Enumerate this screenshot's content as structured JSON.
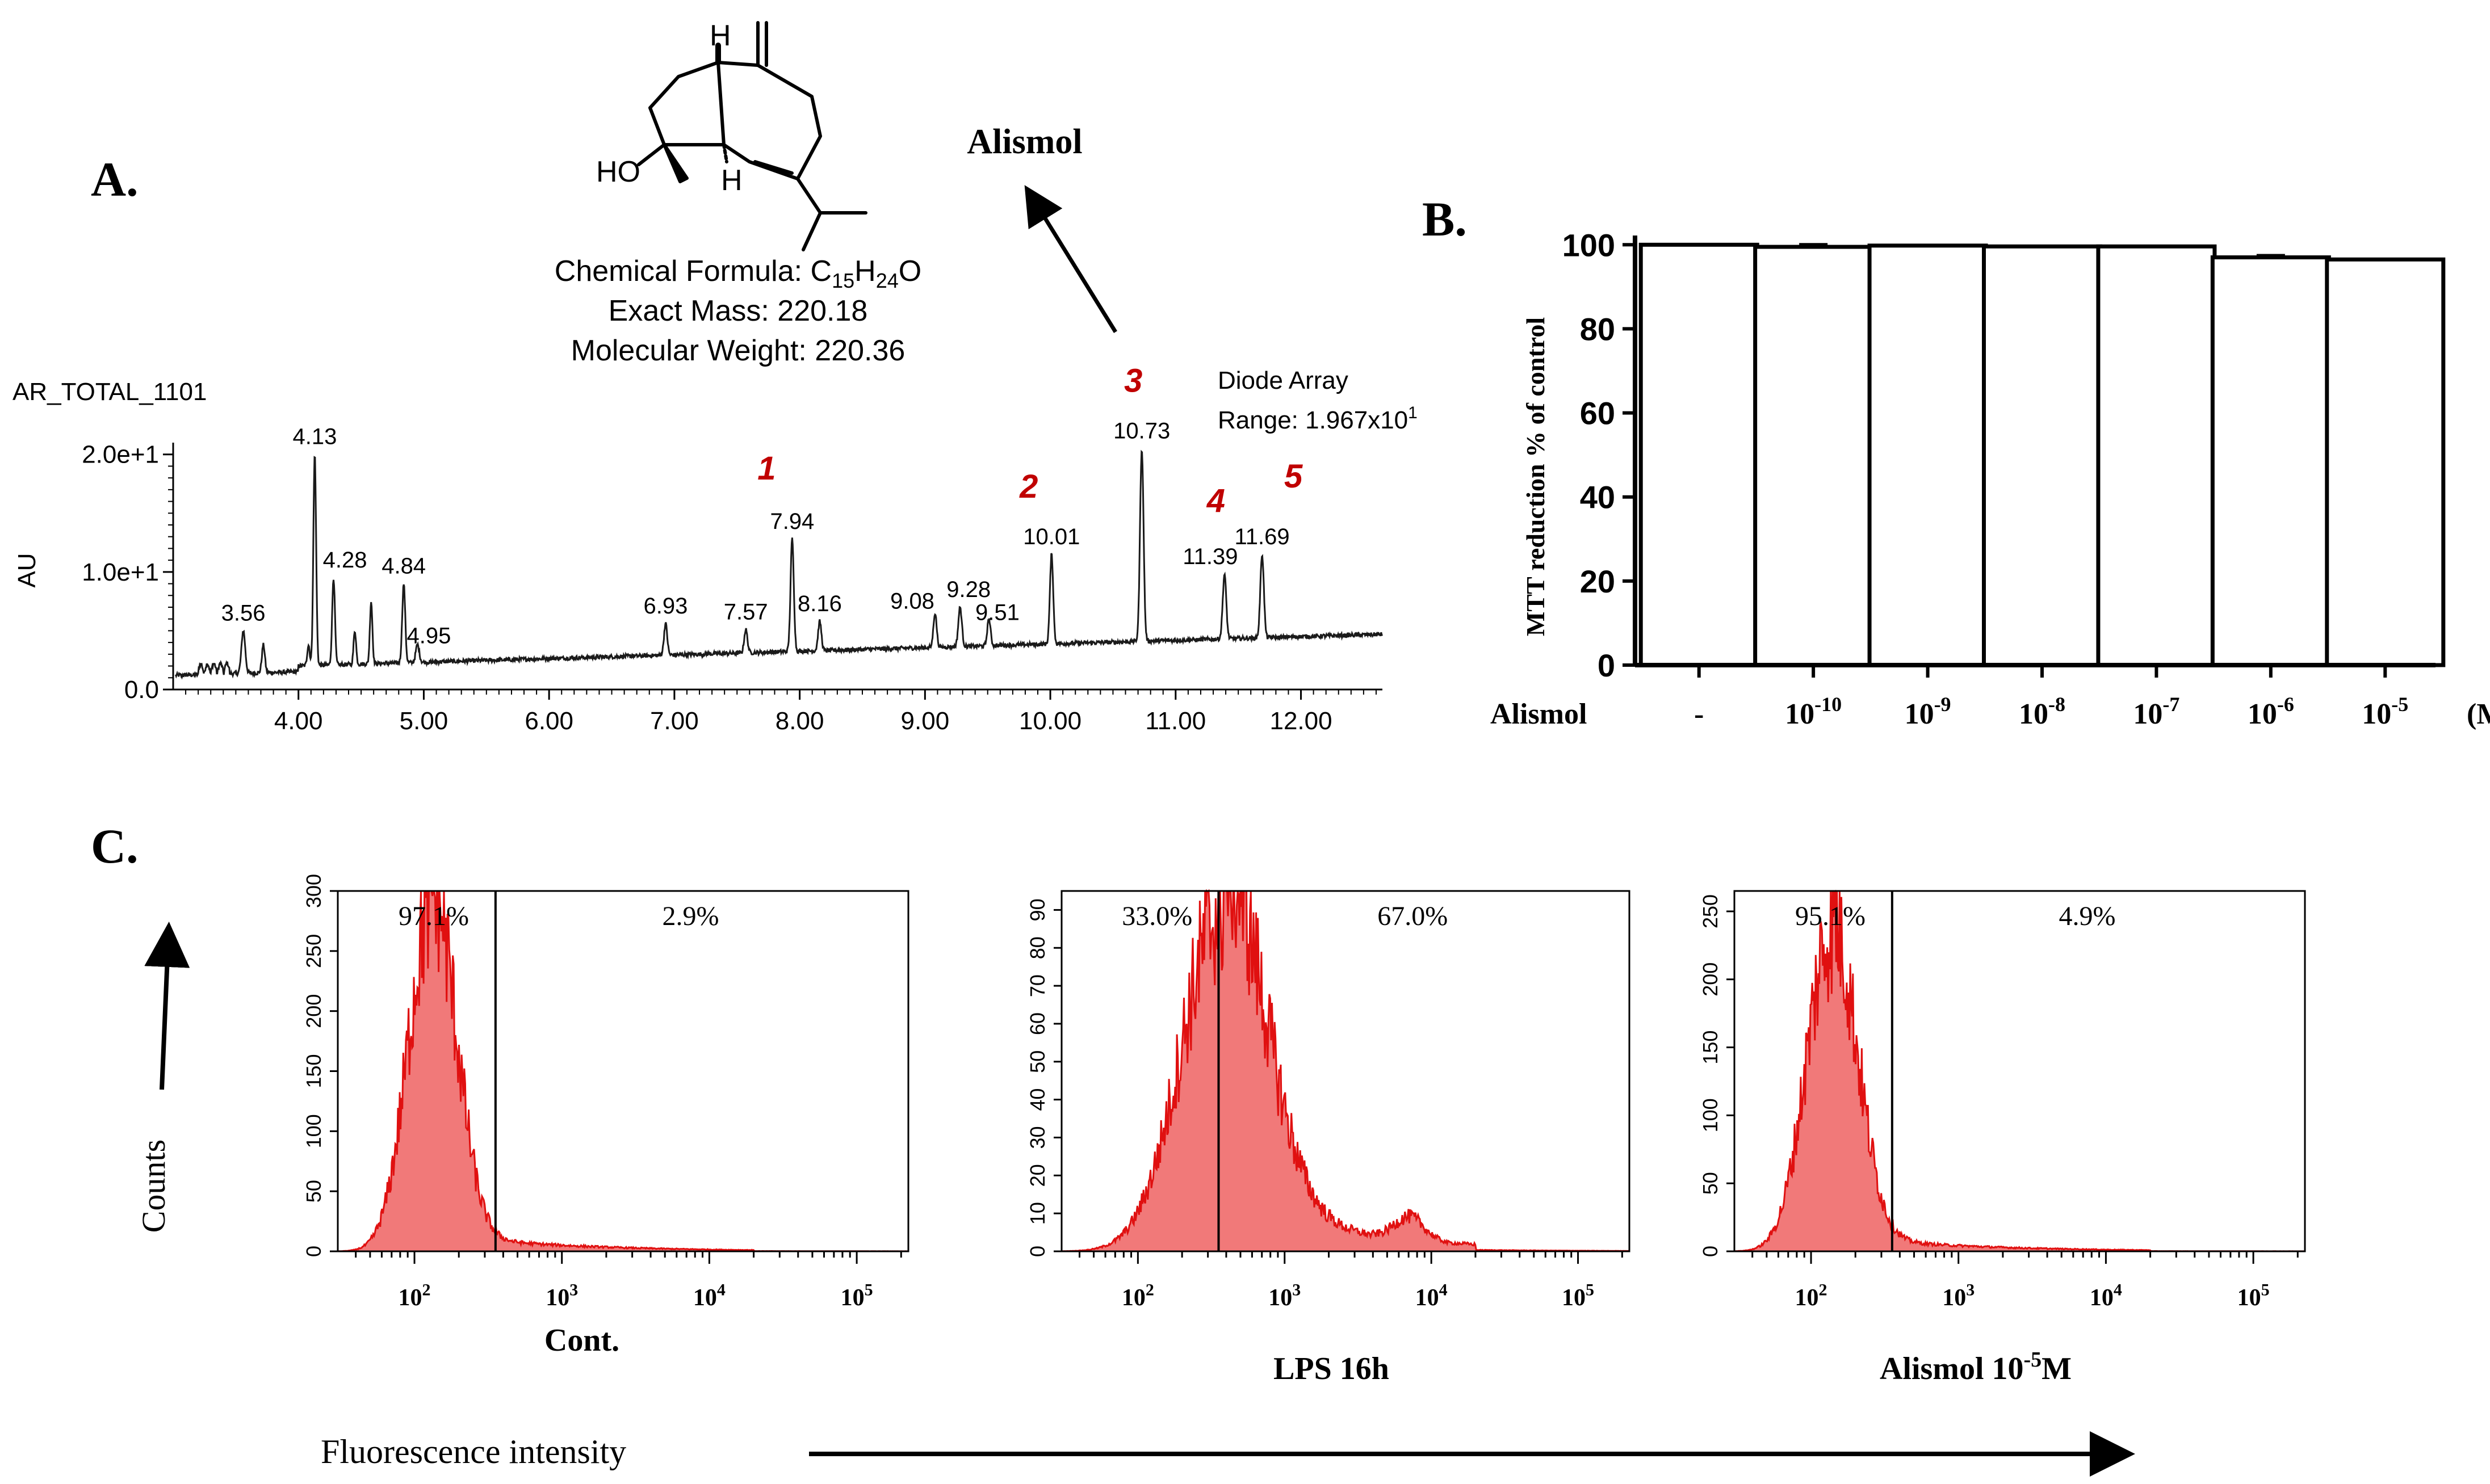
{
  "panel_labels": {
    "a": "A.",
    "b": "B.",
    "c": "C."
  },
  "compound": {
    "name": "Alismol",
    "h_top": "H",
    "h_bottom": "H",
    "ho": "HO",
    "formula_prefix": "Chemical Formula: C",
    "formula_sub1": "15",
    "formula_mid": "H",
    "formula_sub2": "24",
    "formula_end": "O",
    "exact_mass": "Exact Mass: 220.18",
    "molecular_weight": "Molecular Weight: 220.36"
  },
  "chart_data": [
    {
      "type": "line",
      "id": "chromatogram",
      "title": "AR_TOTAL_1101",
      "detector": "Diode Array",
      "range_prefix": "Range: 1.967x10",
      "range_exp": "1",
      "ylabel": "AU",
      "xlim": [
        3.0,
        12.65
      ],
      "ylim": [
        0,
        21
      ],
      "x_ticks": [
        "4.00",
        "5.00",
        "6.00",
        "7.00",
        "8.00",
        "9.00",
        "10.00",
        "11.00",
        "12.00"
      ],
      "x_tick_values": [
        4,
        5,
        6,
        7,
        8,
        9,
        10,
        11,
        12
      ],
      "y_ticks": [
        "0.0",
        "1.0e+1",
        "2.0e+1"
      ],
      "y_tick_values": [
        0,
        10,
        20
      ],
      "peaks": [
        {
          "rt": 3.56,
          "label": "3.56",
          "height": 5.0,
          "width": 0.015
        },
        {
          "rt": 3.72,
          "label": "",
          "height": 3.8,
          "width": 0.012
        },
        {
          "rt": 4.08,
          "label": "",
          "height": 3.8,
          "width": 0.01
        },
        {
          "rt": 4.13,
          "label": "4.13",
          "height": 20.0,
          "width": 0.011
        },
        {
          "rt": 4.28,
          "label": "4.28",
          "height": 9.5,
          "width": 0.011
        },
        {
          "rt": 4.45,
          "label": "",
          "height": 5.0,
          "width": 0.01
        },
        {
          "rt": 4.58,
          "label": "",
          "height": 7.5,
          "width": 0.01
        },
        {
          "rt": 4.84,
          "label": "4.84",
          "height": 9.0,
          "width": 0.012
        },
        {
          "rt": 4.95,
          "label": "4.95",
          "height": 3.8,
          "width": 0.014
        },
        {
          "rt": 6.93,
          "label": "6.93",
          "height": 5.6,
          "width": 0.013
        },
        {
          "rt": 7.57,
          "label": "7.57",
          "height": 5.1,
          "width": 0.013
        },
        {
          "rt": 7.94,
          "label": "7.94",
          "height": 12.8,
          "width": 0.013
        },
        {
          "rt": 8.16,
          "label": "8.16",
          "height": 5.8,
          "width": 0.013
        },
        {
          "rt": 9.08,
          "label": "9.08",
          "height": 6.5,
          "width": 0.013
        },
        {
          "rt": 9.28,
          "label": "9.28",
          "height": 7.0,
          "width": 0.014
        },
        {
          "rt": 9.51,
          "label": "9.51",
          "height": 6.0,
          "width": 0.013
        },
        {
          "rt": 10.01,
          "label": "10.01",
          "height": 11.5,
          "width": 0.013
        },
        {
          "rt": 10.73,
          "label": "10.73",
          "height": 20.5,
          "width": 0.014
        },
        {
          "rt": 11.39,
          "label": "11.39",
          "height": 9.8,
          "width": 0.014
        },
        {
          "rt": 11.69,
          "label": "11.69",
          "height": 11.5,
          "width": 0.014
        }
      ],
      "peak_markers": [
        {
          "label": "1",
          "rt": 7.94
        },
        {
          "label": "2",
          "rt": 10.01
        },
        {
          "label": "3",
          "rt": 10.73
        },
        {
          "label": "4",
          "rt": 11.39
        },
        {
          "label": "5",
          "rt": 11.69
        }
      ]
    },
    {
      "type": "bar",
      "id": "mtt",
      "ylabel": "MTT reduction % of control",
      "xlabel": "Alismol",
      "unit": "(M)",
      "ylim": [
        0,
        100
      ],
      "y_ticks": [
        "0",
        "20",
        "40",
        "60",
        "80",
        "100"
      ],
      "y_tick_values": [
        0,
        20,
        40,
        60,
        80,
        100
      ],
      "categories": [
        {
          "base": "-",
          "exp": ""
        },
        {
          "base": "10",
          "exp": "-10"
        },
        {
          "base": "10",
          "exp": "-9"
        },
        {
          "base": "10",
          "exp": "-8"
        },
        {
          "base": "10",
          "exp": "-7"
        },
        {
          "base": "10",
          "exp": "-6"
        },
        {
          "base": "10",
          "exp": "-5"
        }
      ],
      "values": [
        100.0,
        99.5,
        99.8,
        99.6,
        99.6,
        97.0,
        96.5
      ],
      "errors": [
        0,
        0.5,
        0,
        0,
        0,
        0.4,
        0
      ]
    },
    {
      "type": "histogram",
      "id": "flow",
      "ylabel": "Counts",
      "xlabel": "Fluorescence  intensity",
      "x_ticks": [
        {
          "base": "10",
          "exp": "2"
        },
        {
          "base": "10",
          "exp": "3"
        },
        {
          "base": "10",
          "exp": "4"
        },
        {
          "base": "10",
          "exp": "5"
        }
      ],
      "x_tick_values": [
        2,
        3,
        4,
        5
      ],
      "xlim_log10": [
        1.48,
        5.35
      ],
      "panels": [
        {
          "name": "Cont.",
          "name_exp": "",
          "name_suffix": "",
          "gate_log10": 2.55,
          "left_pct": "97.1%",
          "right_pct": "2.9%",
          "ymax": 300,
          "y_ticks": [
            "0",
            "50",
            "100",
            "150",
            "200",
            "250",
            "300"
          ],
          "y_tick_values": [
            0,
            50,
            100,
            150,
            200,
            250,
            300
          ],
          "peak_log10": 2.12,
          "peak_count": 290,
          "sigma": 0.16,
          "tail": 0.05
        },
        {
          "name": "LPS 16h",
          "name_exp": "",
          "name_suffix": "",
          "gate_log10": 2.55,
          "left_pct": "33.0%",
          "right_pct": "67.0%",
          "ymax": 95,
          "y_ticks": [
            "0",
            "10",
            "20",
            "30",
            "40",
            "50",
            "60",
            "70",
            "80",
            "90"
          ],
          "y_tick_values": [
            0,
            10,
            20,
            30,
            40,
            50,
            60,
            70,
            80,
            90
          ],
          "peak_log10": 2.58,
          "peak_count": 90,
          "sigma": 0.28,
          "tail": 0.16
        },
        {
          "name": "Alismol 10",
          "name_exp": "-5",
          "name_suffix": "M",
          "gate_log10": 2.55,
          "left_pct": "95.1%",
          "right_pct": "4.9%",
          "ymax": 265,
          "y_ticks": [
            "0",
            "50",
            "100",
            "150",
            "200",
            "250"
          ],
          "y_tick_values": [
            0,
            50,
            100,
            150,
            200,
            250
          ],
          "peak_log10": 2.14,
          "peak_count": 235,
          "sigma": 0.17,
          "tail": 0.05
        }
      ]
    }
  ]
}
